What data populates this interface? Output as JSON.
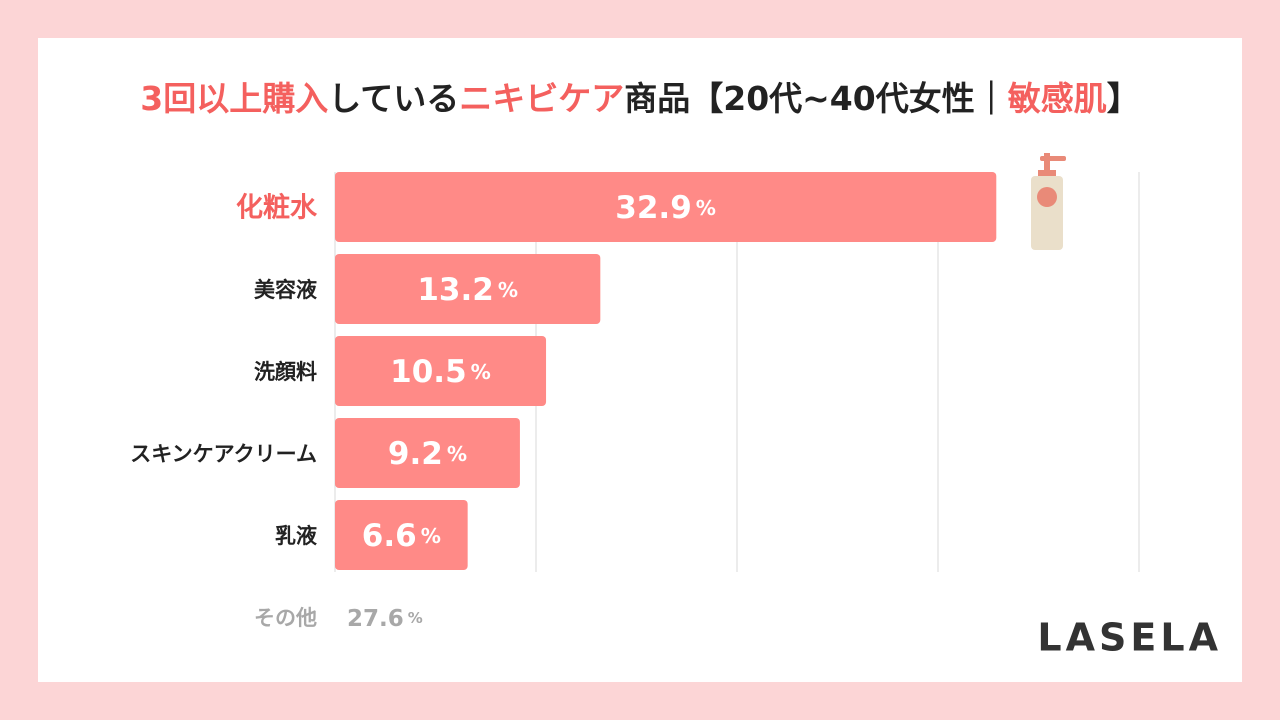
{
  "chart_data": {
    "type": "bar",
    "orientation": "horizontal",
    "title_parts": [
      {
        "text": "3回以上購入",
        "highlight": true
      },
      {
        "text": "している",
        "highlight": false
      },
      {
        "text": "ニキビケア",
        "highlight": true
      },
      {
        "text": "商品【20代~40代女性｜",
        "highlight": false
      },
      {
        "text": "敏感肌",
        "highlight": true
      },
      {
        "text": "】",
        "highlight": false
      }
    ],
    "categories": [
      "化粧水",
      "美容液",
      "洗顔料",
      "スキンケアクリーム",
      "乳液"
    ],
    "values": [
      32.9,
      13.2,
      10.5,
      9.2,
      6.6
    ],
    "value_labels": [
      "32.9%",
      "13.2%",
      "10.5%",
      "9.2%",
      "6.6%"
    ],
    "highlight_index": 0,
    "color": "#ff8a87",
    "highlight_color": "#f4605e",
    "xlim": [
      0,
      40
    ],
    "xticks": [
      0,
      10,
      20,
      30,
      40
    ],
    "grid": true,
    "other": {
      "label": "その他",
      "value": 27.6,
      "value_label": "27.6%"
    },
    "brand": "LASELA"
  }
}
